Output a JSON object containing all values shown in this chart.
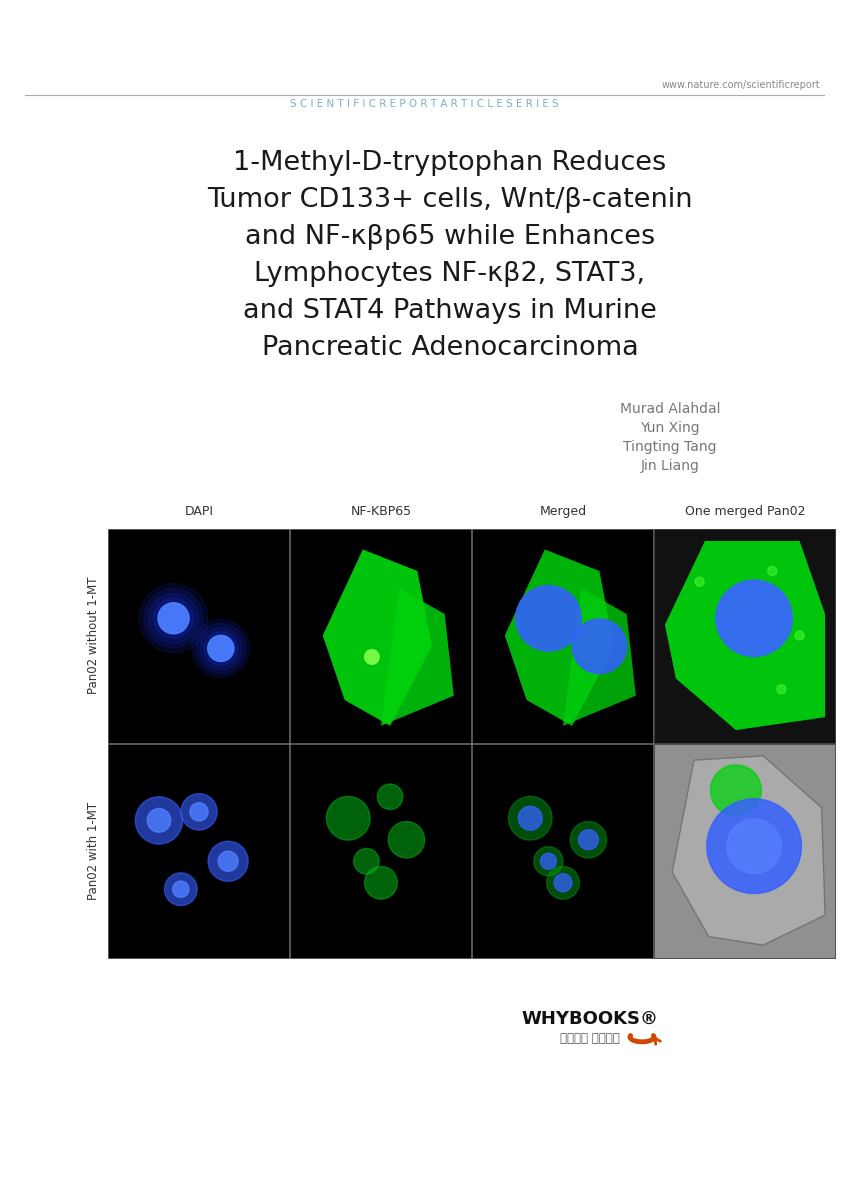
{
  "bg_color": "#ffffff",
  "header_url": "www.nature.com/scientificreport",
  "header_series": "S C I E N T I F I C R E P O R T A R T I C L E S E R I E S",
  "title_lines": [
    "1-Methyl-D-tryptophan Reduces",
    "Tumor CD133+ cells, Wnt/β-catenin",
    "and NF-κβp65 while Enhances",
    "Lymphocytes NF-κβ2, STAT3,",
    "and STAT4 Pathways in Murine",
    "Pancreatic Adenocarcinoma"
  ],
  "authors": [
    "Murad Alahdal",
    "Yun Xing",
    "Tingting Tang",
    "Jin Liang"
  ],
  "col_labels": [
    "DAPI",
    "NF-KBP65",
    "Merged",
    "One merged Pan02"
  ],
  "row_labels": [
    "Pan02 without 1-MT",
    "Pan02 with 1-MT"
  ],
  "whybooks_text": "WHYBOOKS®",
  "whybooks_sub": "주식회사 와이북스",
  "header_color": "#7ab0c8",
  "title_color": "#1a1a1a",
  "author_color": "#777777",
  "line_color": "#aaaaaa"
}
